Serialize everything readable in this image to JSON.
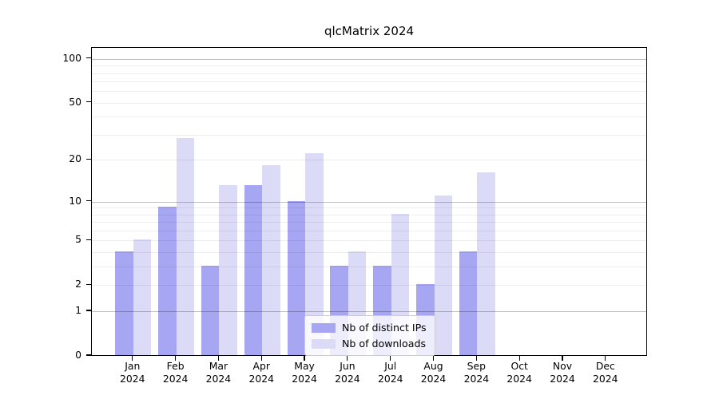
{
  "chart_data": {
    "type": "bar",
    "title": "qlcMatrix 2024",
    "categories": [
      "Jan",
      "Feb",
      "Mar",
      "Apr",
      "May",
      "Jun",
      "Jul",
      "Aug",
      "Sep",
      "Oct",
      "Nov",
      "Dec"
    ],
    "category_year": "2024",
    "series": [
      {
        "name": "Nb of distinct IPs",
        "color": "#a6a6f2",
        "values": [
          4,
          9,
          3,
          13,
          10,
          3,
          3,
          2,
          4,
          0,
          0,
          0
        ]
      },
      {
        "name": "Nb of downloads",
        "color": "#dbdbf8",
        "values": [
          5,
          28,
          13,
          18,
          22,
          4,
          8,
          11,
          16,
          0,
          0,
          0
        ]
      }
    ],
    "yscale": "log1p",
    "ylim": [
      0,
      100
    ],
    "ytick_values": [
      0,
      1,
      2,
      5,
      10,
      20,
      50,
      100
    ],
    "ytick_labels": [
      "0",
      "1",
      "2",
      "5",
      "10",
      "20",
      "50",
      "100"
    ],
    "major_gridline_values": [
      1,
      10,
      100
    ],
    "minor_gridline_values": [
      2,
      3,
      4,
      5,
      6,
      7,
      8,
      9,
      20,
      30,
      40,
      50,
      60,
      70,
      80,
      90
    ],
    "legend_position": "lower center",
    "grid": true,
    "colors": {
      "background": "#ffffff",
      "axis": "#000000",
      "grid_minor": "rgba(0,0,0,0.07)",
      "grid_major": "rgba(0,0,0,0.25)",
      "legend_border": "#cccccc"
    }
  }
}
